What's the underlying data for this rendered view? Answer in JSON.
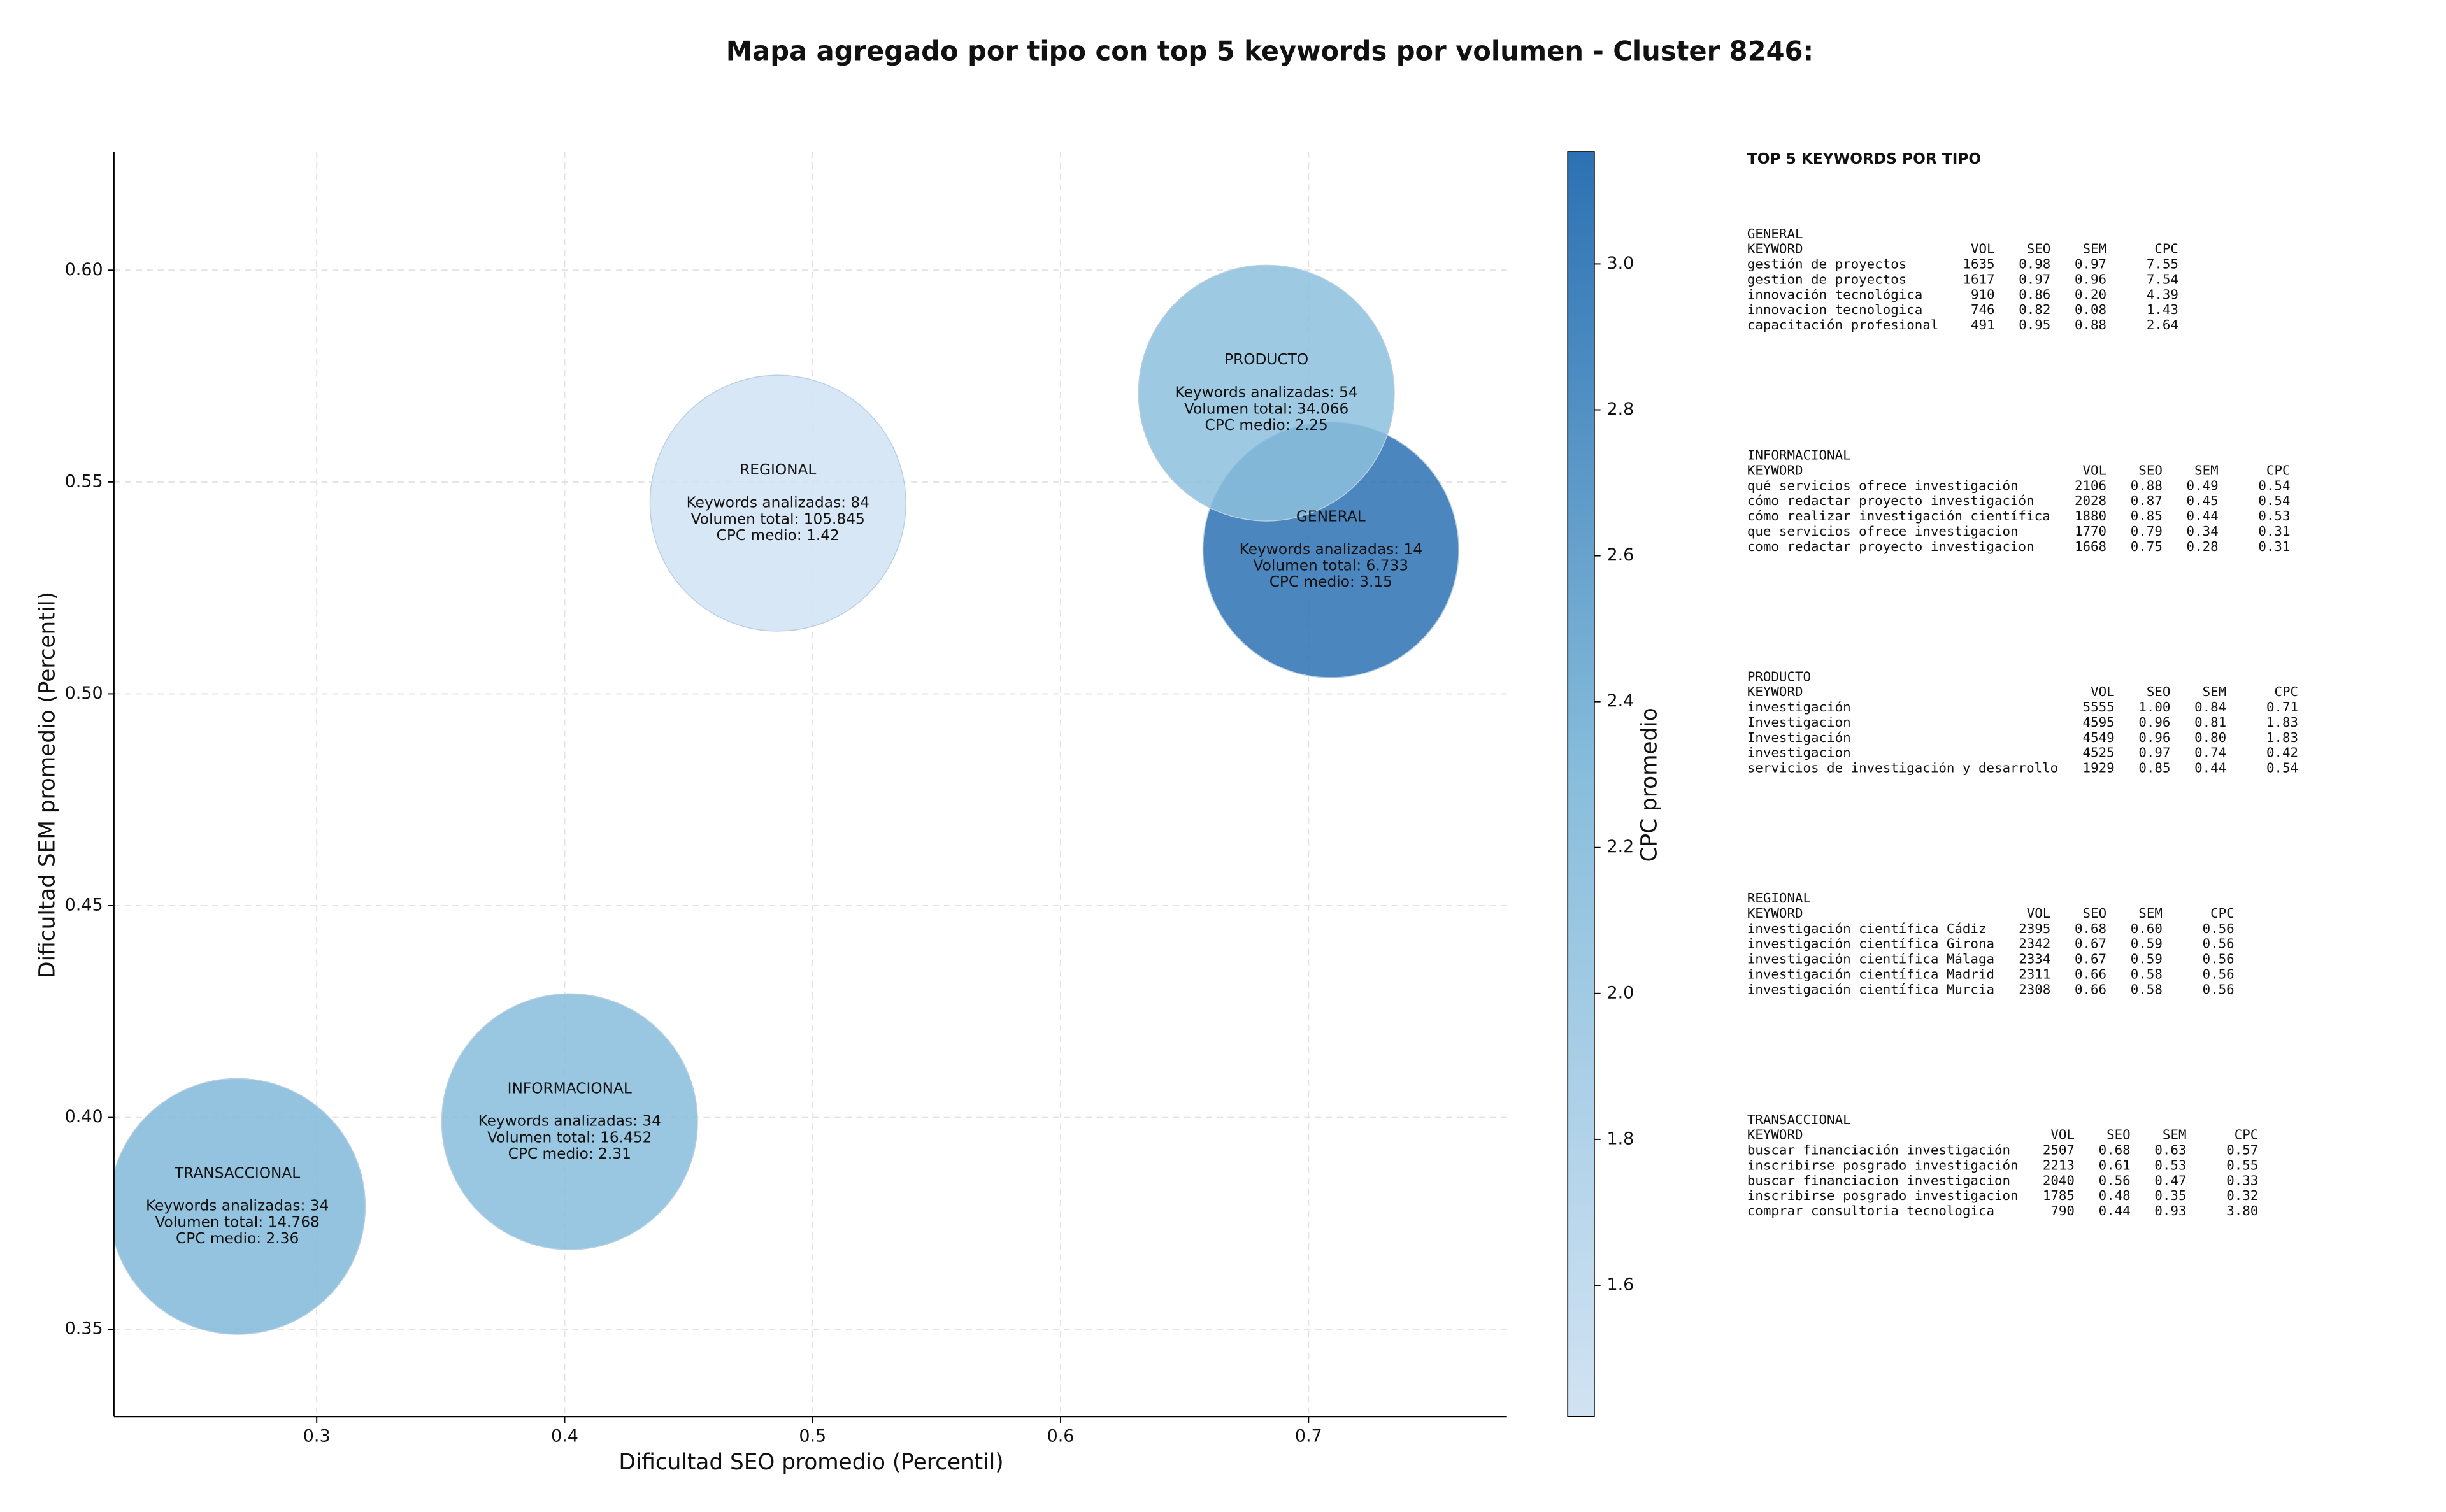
{
  "chart_data": {
    "type": "bubble",
    "title": "Mapa agregado por tipo con top 5 keywords por volumen - Cluster 8246:",
    "x_label": "Dificultad SEO promedio (Percentil)",
    "y_label": "Dificultad SEM promedio (Percentil)",
    "colorbar_label": "CPC promedio",
    "categories": [
      "GENERAL",
      "INFORMACIONAL",
      "PRODUCTO",
      "REGIONAL",
      "TRANSACCIONAL"
    ],
    "x": [
      0.709,
      0.402,
      0.683,
      0.486,
      0.268
    ],
    "y": [
      0.534,
      0.399,
      0.571,
      0.545,
      0.379
    ],
    "cpc": [
      3.15,
      2.31,
      2.25,
      1.42,
      2.36
    ],
    "annotations": [
      [
        "Keywords analizadas: 14",
        "Volumen total: 6.733",
        "CPC medio: 3.15"
      ],
      [
        "Keywords analizadas: 34",
        "Volumen total: 16.452",
        "CPC medio: 2.31"
      ],
      [
        "Keywords analizadas: 54",
        "Volumen total: 34.066",
        "CPC medio: 2.25"
      ],
      [
        "Keywords analizadas: 84",
        "Volumen total: 105.845",
        "CPC medio: 1.42"
      ],
      [
        "Keywords analizadas: 34",
        "Volumen total: 14.768",
        "CPC medio: 2.36"
      ]
    ],
    "xlim": [
      0.2182,
      0.78
    ],
    "ylim": [
      0.3294,
      0.628
    ],
    "xticks": [
      0.3,
      0.4,
      0.5,
      0.6,
      0.7
    ],
    "yticks": [
      {
        "value": 0.35,
        "label": "0.35"
      },
      {
        "value": 0.4,
        "label": "0.40"
      },
      {
        "value": 0.45,
        "label": "0.45"
      },
      {
        "value": 0.5,
        "label": "0.50"
      },
      {
        "value": 0.55,
        "label": "0.55"
      },
      {
        "value": 0.6,
        "label": "0.60"
      }
    ],
    "clim": [
      1.42,
      3.154
    ],
    "cticks": [
      1.6,
      1.8,
      {
        "value": 2,
        "label": "2.0"
      },
      2.2,
      2.4,
      2.6,
      2.8,
      {
        "value": 3,
        "label": "3.0"
      }
    ],
    "colormap": [
      "#d1e3f3",
      "#89bedc",
      "#2c71b3"
    ],
    "grid": true
  },
  "keyword_panel": {
    "title": "TOP 5 KEYWORDS POR TIPO",
    "columns": [
      "KEYWORD",
      "VOL",
      "SEO",
      "SEM",
      "CPC"
    ],
    "groups": [
      {
        "name": "GENERAL",
        "rows": [
          [
            "gestión de proyectos",
            "1635",
            "0.98",
            "0.97",
            "7.55"
          ],
          [
            "gestion de proyectos",
            "1617",
            "0.97",
            "0.96",
            "7.54"
          ],
          [
            "innovación tecnológica",
            "910",
            "0.86",
            "0.20",
            "4.39"
          ],
          [
            "innovacion tecnologica",
            "746",
            "0.82",
            "0.08",
            "1.43"
          ],
          [
            "capacitación profesional",
            "491",
            "0.95",
            "0.88",
            "2.64"
          ]
        ]
      },
      {
        "name": "INFORMACIONAL",
        "rows": [
          [
            "qué servicios ofrece investigación",
            "2106",
            "0.88",
            "0.49",
            "0.54"
          ],
          [
            "cómo redactar proyecto investigación",
            "2028",
            "0.87",
            "0.45",
            "0.54"
          ],
          [
            "cómo realizar investigación científica",
            "1880",
            "0.85",
            "0.44",
            "0.53"
          ],
          [
            "que servicios ofrece investigacion",
            "1770",
            "0.79",
            "0.34",
            "0.31"
          ],
          [
            "como redactar proyecto investigacion",
            "1668",
            "0.75",
            "0.28",
            "0.31"
          ]
        ]
      },
      {
        "name": "PRODUCTO",
        "rows": [
          [
            "investigación",
            "5555",
            "1.00",
            "0.84",
            "0.71"
          ],
          [
            "Investigacion",
            "4595",
            "0.96",
            "0.81",
            "1.83"
          ],
          [
            "Investigación",
            "4549",
            "0.96",
            "0.80",
            "1.83"
          ],
          [
            "investigacion",
            "4525",
            "0.97",
            "0.74",
            "0.42"
          ],
          [
            "servicios de investigación y desarrollo",
            "1929",
            "0.85",
            "0.44",
            "0.54"
          ]
        ]
      },
      {
        "name": "REGIONAL",
        "rows": [
          [
            "investigación científica Cádiz",
            "2395",
            "0.68",
            "0.60",
            "0.56"
          ],
          [
            "investigación científica Girona",
            "2342",
            "0.67",
            "0.59",
            "0.56"
          ],
          [
            "investigación científica Málaga",
            "2334",
            "0.67",
            "0.59",
            "0.56"
          ],
          [
            "investigación científica Madrid",
            "2311",
            "0.66",
            "0.58",
            "0.56"
          ],
          [
            "investigación científica Murcia",
            "2308",
            "0.66",
            "0.58",
            "0.56"
          ]
        ]
      },
      {
        "name": "TRANSACCIONAL",
        "rows": [
          [
            "buscar financiación investigación",
            "2507",
            "0.68",
            "0.63",
            "0.57"
          ],
          [
            "inscribirse posgrado investigación",
            "2213",
            "0.61",
            "0.53",
            "0.55"
          ],
          [
            "buscar financiacion investigacion",
            "2040",
            "0.56",
            "0.47",
            "0.33"
          ],
          [
            "inscribirse posgrado investigacion",
            "1785",
            "0.48",
            "0.35",
            "0.32"
          ],
          [
            "comprar consultoria tecnologica",
            "790",
            "0.44",
            "0.93",
            "3.80"
          ]
        ]
      }
    ]
  }
}
